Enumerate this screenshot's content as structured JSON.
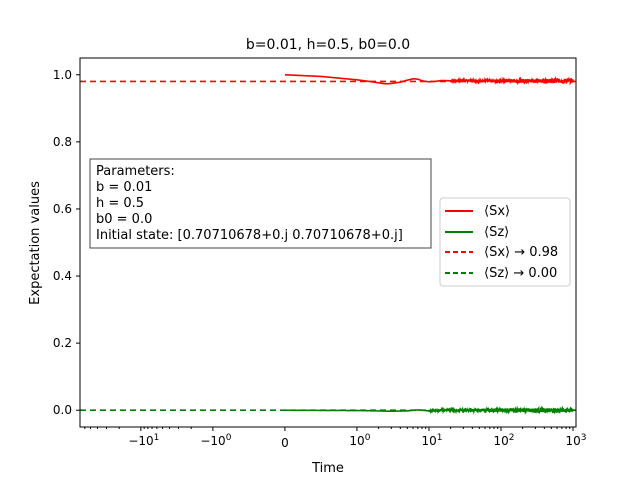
{
  "chart_data": {
    "type": "line",
    "title": "b=0.01, h=0.5, b0=0.0",
    "xlabel": "Time",
    "ylabel": "Expectation values",
    "x_scale": "symlog",
    "xlim": [
      -70,
      1100
    ],
    "ylim": [
      -0.05,
      1.05
    ],
    "y_ticks": [
      0.0,
      0.2,
      0.4,
      0.6,
      0.8,
      1.0
    ],
    "y_tick_labels": [
      "0.0",
      "0.2",
      "0.4",
      "0.6",
      "0.8",
      "1.0"
    ],
    "x_tick_labels": [
      {
        "base": "−10",
        "exp": "1"
      },
      {
        "base": "−10",
        "exp": "0"
      },
      {
        "base": "0",
        "exp": ""
      },
      {
        "base": "10",
        "exp": "0"
      },
      {
        "base": "10",
        "exp": "1"
      },
      {
        "base": "10",
        "exp": "2"
      },
      {
        "base": "10",
        "exp": "3"
      }
    ],
    "x_ticks": [
      -10,
      -1,
      0,
      1,
      10,
      100,
      1000
    ],
    "series": [
      {
        "name": "⟨Sx⟩",
        "color": "#ff0000",
        "style": "solid",
        "points": [
          [
            0,
            1.0
          ],
          [
            0.5,
            0.995
          ],
          [
            1,
            0.985
          ],
          [
            1.5,
            0.98
          ],
          [
            2,
            0.976
          ],
          [
            2.5,
            0.973
          ],
          [
            3,
            0.974
          ],
          [
            4,
            0.978
          ],
          [
            5,
            0.984
          ],
          [
            6,
            0.988
          ],
          [
            7,
            0.987
          ],
          [
            8,
            0.982
          ],
          [
            10,
            0.979
          ],
          [
            12,
            0.98
          ],
          [
            15,
            0.983
          ],
          [
            20,
            0.982
          ],
          [
            30,
            0.983
          ],
          [
            50,
            0.982
          ],
          [
            100,
            0.982
          ],
          [
            200,
            0.982
          ],
          [
            500,
            0.982
          ],
          [
            1000,
            0.982
          ]
        ],
        "noise_from": 20,
        "noise_amp": 0.006
      },
      {
        "name": "⟨Sz⟩",
        "color": "#008000",
        "style": "solid",
        "points": [
          [
            0,
            0.0
          ],
          [
            1,
            -0.001
          ],
          [
            2,
            -0.002
          ],
          [
            3,
            -0.003
          ],
          [
            5,
            -0.002
          ],
          [
            7,
            0.001
          ],
          [
            8,
            0.0
          ],
          [
            10,
            -0.002
          ],
          [
            15,
            0.0
          ],
          [
            20,
            0.0
          ],
          [
            50,
            0.0
          ],
          [
            100,
            0.0
          ],
          [
            200,
            0.0
          ],
          [
            500,
            0.0
          ],
          [
            1000,
            0.0
          ]
        ],
        "noise_from": 10,
        "noise_amp": 0.006
      }
    ],
    "reference_lines": [
      {
        "name": "⟨Sx⟩ → 0.98",
        "value": 0.98,
        "color": "#ff0000",
        "style": "dashed"
      },
      {
        "name": "⟨Sz⟩ → 0.00",
        "value": 0.0,
        "color": "#008000",
        "style": "dashed"
      }
    ],
    "legend_placement": "center-right",
    "annotation": {
      "lines": [
        "Parameters:",
        "b = 0.01",
        "h = 0.5",
        "b0 = 0.0",
        "Initial state: [0.70710678+0.j 0.70710678+0.j]"
      ]
    },
    "grid": false
  }
}
